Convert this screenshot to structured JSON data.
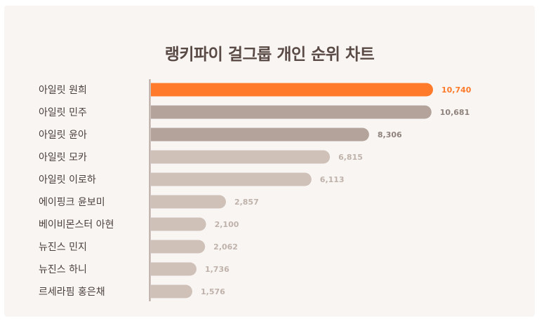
{
  "chart_data": {
    "type": "bar",
    "orientation": "horizontal",
    "title": "랭키파이 걸그룹 개인 순위 차트",
    "categories": [
      "아일릿 원희",
      "아일릿 민주",
      "아일릿 윤아",
      "아일릿 모카",
      "아일릿 이로하",
      "에이핑크 윤보미",
      "베이비몬스터 아현",
      "뉴진스 민지",
      "뉴진스 하니",
      "르세라핌 홍은채"
    ],
    "values": [
      10740,
      10681,
      8306,
      6815,
      6113,
      2857,
      2100,
      2062,
      1736,
      1576
    ],
    "value_labels": [
      "10,740",
      "10,681",
      "8,306",
      "6,815",
      "6,113",
      "2,857",
      "2,100",
      "2,062",
      "1,736",
      "1,576"
    ],
    "xlim": [
      0,
      10740
    ],
    "grid": false,
    "colors": {
      "highlight": "#ff7a2a",
      "dark": "#b3a39b",
      "light": "#cfc1b8",
      "highlight_text": "#ff7a2a",
      "dark_text": "#8f827c",
      "light_text": "#bfb2aa"
    }
  }
}
